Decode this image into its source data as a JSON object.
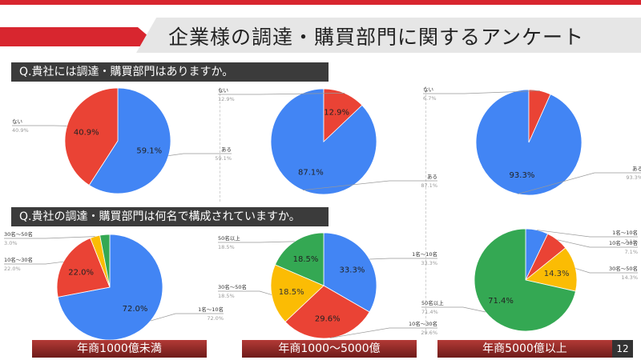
{
  "header": {
    "title": "企業様の調達・購買部門に関するアンケート"
  },
  "questions": [
    {
      "label": "Q.貴社には調達・購買部門はありますか。"
    },
    {
      "label": "Q.貴社の調達・購買部門は何名で構成されていますか。"
    }
  ],
  "footer": {
    "groups": [
      "年商1000億未満",
      "年商1000〜5000億",
      "年商5000億以上"
    ],
    "page_number": "12"
  },
  "colors": {
    "blue": "#4285f4",
    "red": "#ea4335",
    "yellow": "#fbbc04",
    "green": "#34a853",
    "accent": "#d8262f"
  },
  "chart_data": [
    {
      "type": "pie",
      "group": "年商1000億未満",
      "question": 1,
      "slices": [
        {
          "label": "ある",
          "value": 59.1,
          "display": "59.1%",
          "color": "#4285f4"
        },
        {
          "label": "ない",
          "value": 40.9,
          "display": "40.9%",
          "color": "#ea4335"
        }
      ]
    },
    {
      "type": "pie",
      "group": "年商1000〜5000億",
      "question": 1,
      "slices": [
        {
          "label": "ある",
          "value": 87.1,
          "display": "87.1%",
          "color": "#4285f4"
        },
        {
          "label": "ない",
          "value": 12.9,
          "display": "12.9%",
          "color": "#ea4335"
        }
      ]
    },
    {
      "type": "pie",
      "group": "年商5000億以上",
      "question": 1,
      "slices": [
        {
          "label": "ある",
          "value": 93.3,
          "display": "93.3%",
          "color": "#4285f4"
        },
        {
          "label": "ない",
          "value": 6.7,
          "display": "6.7%",
          "color": "#ea4335"
        }
      ]
    },
    {
      "type": "pie",
      "group": "年商1000億未満",
      "question": 2,
      "slices": [
        {
          "label": "1名〜10名",
          "value": 72.0,
          "display": "72.0%",
          "color": "#4285f4"
        },
        {
          "label": "10名〜30名",
          "value": 22.0,
          "display": "22.0%",
          "color": "#ea4335"
        },
        {
          "label": "30名〜50名",
          "value": 3.0,
          "display": "3.0%",
          "color": "#fbbc04"
        },
        {
          "label": "",
          "value": 3.0,
          "display": "",
          "color": "#34a853"
        }
      ]
    },
    {
      "type": "pie",
      "group": "年商1000〜5000億",
      "question": 2,
      "slices": [
        {
          "label": "1名〜10名",
          "value": 33.3,
          "display": "33.3%",
          "color": "#4285f4"
        },
        {
          "label": "10名〜30名",
          "value": 29.6,
          "display": "29.6%",
          "color": "#ea4335"
        },
        {
          "label": "30名〜50名",
          "value": 18.5,
          "display": "18.5%",
          "color": "#fbbc04"
        },
        {
          "label": "50名以上",
          "value": 18.5,
          "display": "18.5%",
          "color": "#34a853"
        }
      ]
    },
    {
      "type": "pie",
      "group": "年商5000億以上",
      "question": 2,
      "slices": [
        {
          "label": "1名〜10名",
          "value": 7.1,
          "display": "7.1%",
          "color": "#4285f4"
        },
        {
          "label": "10名〜30名",
          "value": 7.1,
          "display": "7.1%",
          "color": "#ea4335"
        },
        {
          "label": "30名〜50名",
          "value": 14.3,
          "display": "14.3%",
          "color": "#fbbc04"
        },
        {
          "label": "50名以上",
          "value": 71.4,
          "display": "71.4%",
          "color": "#34a853"
        }
      ]
    }
  ]
}
